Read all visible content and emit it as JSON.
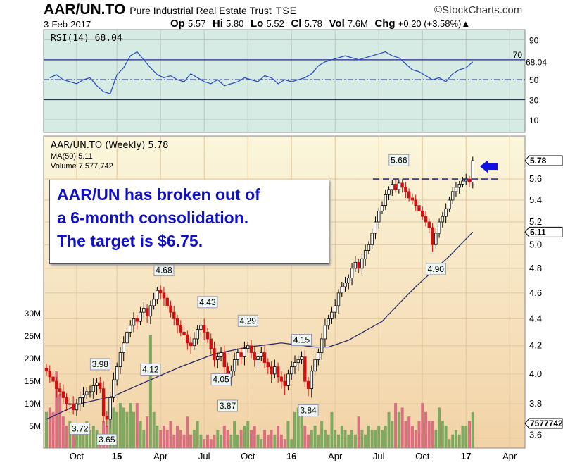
{
  "header": {
    "symbol": "AAR/UN.TO",
    "name": "Pure Industrial Real Estate Trust",
    "exchange": "TSE",
    "source": "©StockCharts.com",
    "date": "3-Feb-2017",
    "quote": [
      {
        "k": "Op",
        "v": "5.57"
      },
      {
        "k": "Hi",
        "v": "5.80"
      },
      {
        "k": "Lo",
        "v": "5.52"
      },
      {
        "k": "Cl",
        "v": "5.78"
      },
      {
        "k": "Vol",
        "v": "7.6M"
      },
      {
        "k": "Chg",
        "v": "+0.20 (+3.58%)▲"
      }
    ]
  },
  "annotation": {
    "lines": [
      "AAR/UN has broken out of",
      "a 6-month consolidation.",
      "The target is $6.75."
    ],
    "arrow_color": "#1010e0",
    "resistance": 5.6
  },
  "chart_data": [
    {
      "type": "line",
      "title": "RSI(14) 68.04",
      "last_label": "68.04",
      "ylim": [
        0,
        100
      ],
      "ticks": [
        90,
        70,
        50,
        30,
        10
      ],
      "ref_lines": [
        70,
        50,
        30
      ],
      "values_biweekly": [
        52,
        55,
        50,
        48,
        46,
        50,
        52,
        44,
        38,
        36,
        55,
        62,
        74,
        78,
        70,
        62,
        55,
        52,
        54,
        50,
        48,
        56,
        52,
        48,
        46,
        50,
        44,
        46,
        48,
        52,
        50,
        48,
        54,
        52,
        46,
        50,
        48,
        50,
        52,
        56,
        64,
        68,
        70,
        72,
        74,
        72,
        70,
        72,
        74,
        76,
        78,
        74,
        72,
        66,
        60,
        58,
        54,
        50,
        52,
        48,
        56,
        60,
        62,
        68
      ]
    },
    {
      "type": "candlestick",
      "title": "AAR/UN.TO (Weekly) 5.78",
      "ma_label": "MA(50) 5.11",
      "volume_label": "Volume 7,577,742",
      "price_ticks": [
        5.6,
        5.4,
        5.2,
        5.0,
        4.8,
        4.6,
        4.4,
        4.2,
        4.0,
        3.8,
        3.6
      ],
      "last_price": "5.78",
      "last_ma": "5.11",
      "last_volume": "7577742",
      "volume_ticks": [
        "30M",
        "25M",
        "20M",
        "15M",
        "10M",
        "5M"
      ],
      "x_ticks": [
        {
          "label": "Oct",
          "w": 9
        },
        {
          "label": "15",
          "w": 21,
          "bold": true
        },
        {
          "label": "Apr",
          "w": 34
        },
        {
          "label": "Jul",
          "w": 47
        },
        {
          "label": "Oct",
          "w": 60
        },
        {
          "label": "16",
          "w": 73,
          "bold": true
        },
        {
          "label": "Apr",
          "w": 86
        },
        {
          "label": "Jul",
          "w": 99
        },
        {
          "label": "Oct",
          "w": 112
        },
        {
          "label": "17",
          "w": 125,
          "bold": true
        },
        {
          "label": "Apr",
          "w": 138
        }
      ],
      "callouts": [
        {
          "label": "3.72",
          "w": 10,
          "p": 3.72,
          "dir": "below"
        },
        {
          "label": "3.98",
          "w": 16,
          "p": 3.98,
          "dir": "above"
        },
        {
          "label": "3.65",
          "w": 18,
          "p": 3.65,
          "dir": "below"
        },
        {
          "label": "4.68",
          "w": 35,
          "p": 4.68,
          "dir": "above"
        },
        {
          "label": "4.12",
          "w": 31,
          "p": 4.12,
          "dir": "below"
        },
        {
          "label": "4.43",
          "w": 48,
          "p": 4.43,
          "dir": "above"
        },
        {
          "label": "4.05",
          "w": 52,
          "p": 4.05,
          "dir": "below"
        },
        {
          "label": "3.87",
          "w": 54,
          "p": 3.87,
          "dir": "below"
        },
        {
          "label": "4.29",
          "w": 60,
          "p": 4.29,
          "dir": "above"
        },
        {
          "label": "4.15",
          "w": 76,
          "p": 4.15,
          "dir": "above"
        },
        {
          "label": "3.84",
          "w": 78,
          "p": 3.84,
          "dir": "below"
        },
        {
          "label": "5.66",
          "w": 105,
          "p": 5.66,
          "dir": "above"
        },
        {
          "label": "4.90",
          "w": 116,
          "p": 4.9,
          "dir": "below"
        }
      ],
      "closes": [
        4.02,
        3.98,
        3.95,
        3.9,
        3.88,
        3.84,
        3.8,
        3.8,
        3.76,
        3.8,
        3.84,
        3.86,
        3.88,
        3.88,
        3.92,
        3.94,
        3.9,
        3.72,
        3.7,
        3.84,
        3.96,
        4.05,
        4.15,
        4.22,
        4.3,
        4.35,
        4.4,
        4.38,
        4.45,
        4.48,
        4.42,
        4.5,
        4.55,
        4.62,
        4.6,
        4.56,
        4.5,
        4.45,
        4.4,
        4.35,
        4.3,
        4.28,
        4.22,
        4.2,
        4.25,
        4.32,
        4.35,
        4.3,
        4.25,
        4.18,
        4.1,
        4.12,
        4.15,
        4.05,
        3.98,
        4.02,
        4.1,
        4.15,
        4.12,
        4.18,
        4.2,
        4.15,
        4.1,
        4.12,
        4.15,
        4.08,
        4.05,
        4.0,
        4.05,
        3.98,
        3.95,
        3.92,
        4.0,
        4.05,
        4.08,
        4.1,
        4.12,
        3.95,
        3.9,
        4.02,
        4.1,
        4.15,
        4.25,
        4.35,
        4.4,
        4.45,
        4.5,
        4.6,
        4.65,
        4.68,
        4.72,
        4.8,
        4.85,
        4.8,
        4.88,
        4.95,
        5.0,
        5.1,
        5.2,
        5.3,
        5.35,
        5.45,
        5.5,
        5.55,
        5.5,
        5.56,
        5.52,
        5.48,
        5.42,
        5.4,
        5.35,
        5.3,
        5.25,
        5.2,
        5.15,
        5.0,
        5.1,
        5.2,
        5.25,
        5.32,
        5.4,
        5.48,
        5.52,
        5.55,
        5.58,
        5.6,
        5.57,
        5.78
      ],
      "volumes_m": [
        8,
        9,
        8,
        17,
        12,
        7,
        5,
        6,
        3,
        4,
        5,
        4,
        6,
        4,
        5,
        4,
        3,
        6,
        5,
        8,
        9,
        8,
        10,
        9,
        8,
        10,
        8,
        10,
        6,
        4,
        7,
        25,
        8,
        5,
        4,
        5,
        4,
        6,
        3,
        5,
        4,
        3,
        7,
        3,
        4,
        6,
        3,
        2,
        3,
        2,
        3,
        4,
        3,
        5,
        4,
        3,
        6,
        3,
        4,
        5,
        6,
        4,
        5,
        3,
        2,
        4,
        3,
        4,
        3,
        5,
        3,
        2,
        6,
        2,
        8,
        9,
        8,
        5,
        3,
        4,
        5,
        3,
        6,
        4,
        3,
        8,
        4,
        3,
        5,
        4,
        3,
        4,
        3,
        7,
        4,
        3,
        5,
        4,
        4,
        5,
        4,
        5,
        8,
        6,
        10,
        8,
        9,
        6,
        7,
        5,
        4,
        6,
        10,
        8,
        6,
        6,
        4,
        9,
        6,
        5,
        2,
        3,
        4,
        3,
        5,
        5,
        6,
        8
      ],
      "ma50": [
        [
          0,
          3.7
        ],
        [
          10,
          3.8
        ],
        [
          20,
          3.85
        ],
        [
          30,
          3.95
        ],
        [
          40,
          4.05
        ],
        [
          50,
          4.14
        ],
        [
          60,
          4.19
        ],
        [
          70,
          4.22
        ],
        [
          80,
          4.19
        ],
        [
          84,
          4.19
        ],
        [
          90,
          4.24
        ],
        [
          100,
          4.38
        ],
        [
          110,
          4.65
        ],
        [
          120,
          4.9
        ],
        [
          127,
          5.11
        ]
      ]
    }
  ],
  "colors": {
    "up": "#000000",
    "down": "#d01010",
    "vol_up": "#7fa860",
    "vol_down": "#d87080",
    "ma": "#2a2a6a",
    "rsi": "#3050c0"
  }
}
